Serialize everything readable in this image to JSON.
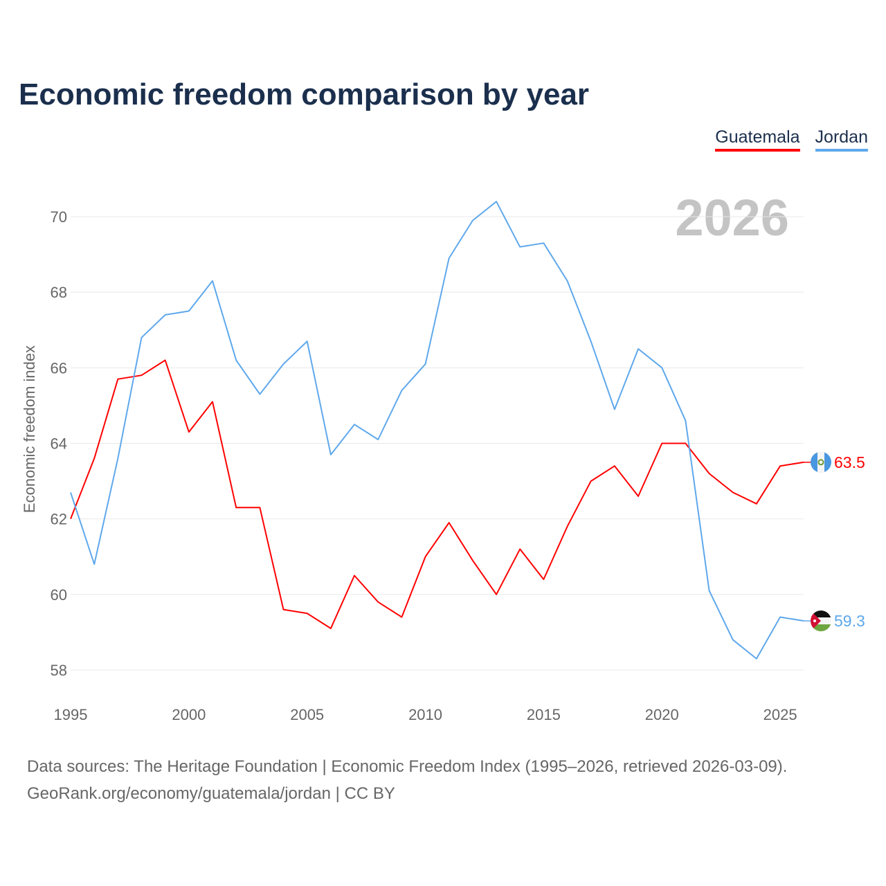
{
  "chart_data": {
    "type": "line",
    "title": "Economic freedom comparison by year",
    "ylabel": "Economic freedom index",
    "xlabel": "",
    "ylim": [
      57.3,
      71.5
    ],
    "xlim": [
      1995,
      2026
    ],
    "yticks": [
      58,
      60,
      62,
      64,
      66,
      68,
      70
    ],
    "xticks": [
      1995,
      2000,
      2005,
      2010,
      2015,
      2020,
      2025
    ],
    "grid": true,
    "legend_placement": "top-right",
    "year_watermark": "2026",
    "x": [
      1995,
      1996,
      1997,
      1998,
      1999,
      2000,
      2001,
      2002,
      2003,
      2004,
      2005,
      2006,
      2007,
      2008,
      2009,
      2010,
      2011,
      2012,
      2013,
      2014,
      2015,
      2016,
      2017,
      2018,
      2019,
      2020,
      2021,
      2022,
      2023,
      2024,
      2025,
      2026
    ],
    "series": [
      {
        "name": "Guatemala",
        "color": "#ff0000",
        "end_label": "63.5",
        "values": [
          62.0,
          63.6,
          65.7,
          65.8,
          66.2,
          64.3,
          65.1,
          62.3,
          62.3,
          59.6,
          59.5,
          59.1,
          60.5,
          59.8,
          59.4,
          61.0,
          61.9,
          60.9,
          60.0,
          61.2,
          60.4,
          61.8,
          63.0,
          63.4,
          62.6,
          64.0,
          64.0,
          63.2,
          62.7,
          62.4,
          63.4,
          63.5
        ]
      },
      {
        "name": "Jordan",
        "color": "#5ea8ec",
        "end_label": "59.3",
        "values": [
          62.7,
          60.8,
          63.6,
          66.8,
          67.4,
          67.5,
          68.3,
          66.2,
          65.3,
          66.1,
          66.7,
          63.7,
          64.5,
          64.1,
          65.4,
          66.1,
          68.9,
          69.9,
          70.4,
          69.2,
          69.3,
          68.3,
          66.7,
          64.9,
          66.5,
          66.0,
          64.6,
          60.1,
          58.8,
          58.3,
          59.4,
          59.3
        ]
      }
    ]
  },
  "source_line1": "Data sources: The Heritage Foundation | Economic Freedom Index (1995–2026, retrieved 2026-03-09).",
  "source_line2": "GeoRank.org/economy/guatemala/jordan | CC BY"
}
